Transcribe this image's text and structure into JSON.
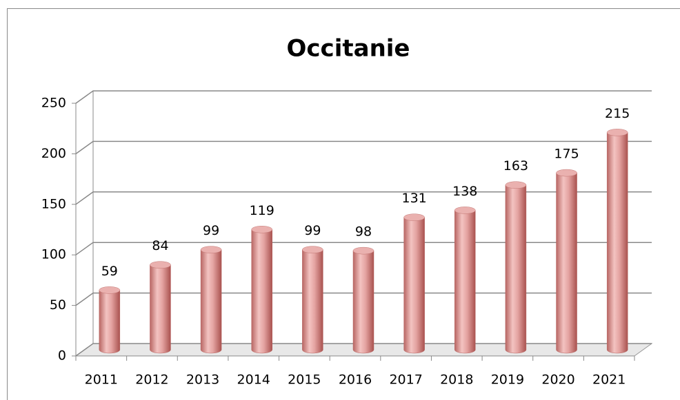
{
  "chart_data": {
    "type": "bar",
    "title": "Occitanie",
    "categories": [
      "2011",
      "2012",
      "2013",
      "2014",
      "2015",
      "2016",
      "2017",
      "2018",
      "2019",
      "2020",
      "2021"
    ],
    "values": [
      59,
      84,
      99,
      119,
      99,
      98,
      131,
      138,
      163,
      175,
      215
    ],
    "color": "#d98c8a",
    "ylim": [
      0,
      250
    ],
    "yticks": [
      0,
      50,
      100,
      150,
      200,
      250
    ],
    "grid": true
  }
}
